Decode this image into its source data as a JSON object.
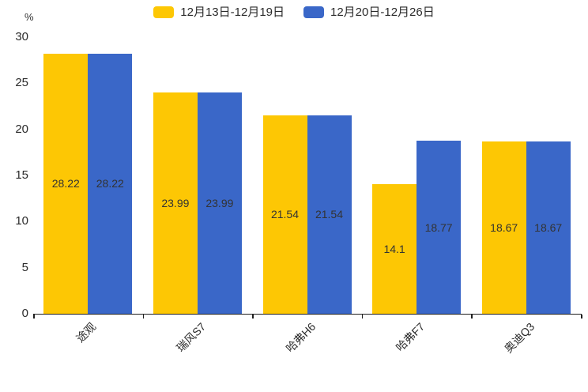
{
  "chart": {
    "unit_label": "%",
    "legend": {
      "items": [
        {
          "label": "12月13日-12月19日",
          "color": "#FDC704"
        },
        {
          "label": "12月20日-12月26日",
          "color": "#3A67C8"
        }
      ]
    }
  },
  "chart_data": {
    "type": "bar",
    "categories": [
      "途观",
      "瑞风S7",
      "哈弗H6",
      "哈弗F7",
      "奥迪Q3"
    ],
    "series": [
      {
        "name": "12月13日-12月19日",
        "color": "#FDC704",
        "values": [
          28.22,
          23.99,
          21.54,
          14.1,
          18.67
        ]
      },
      {
        "name": "12月20日-12月26日",
        "color": "#3A67C8",
        "values": [
          28.22,
          23.99,
          21.54,
          18.77,
          18.67
        ]
      }
    ],
    "title": "",
    "xlabel": "",
    "ylabel": "%",
    "ylim": [
      0,
      30
    ],
    "yticks": [
      0,
      5,
      10,
      15,
      20,
      25,
      30
    ],
    "grid": false,
    "legend_position": "top-center",
    "value_label_position": "inside-center",
    "x_label_rotation_deg": -45,
    "bar_label_color": "#333333",
    "axis_color": "#1f1f1f"
  }
}
